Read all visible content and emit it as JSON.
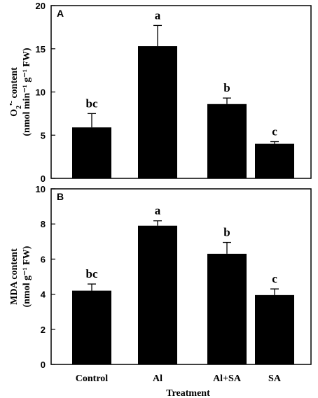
{
  "chart_data": [
    {
      "panel": "A",
      "type": "bar",
      "categories": [
        "Control",
        "Al",
        "Al+SA",
        "SA"
      ],
      "values": [
        5.9,
        15.3,
        8.6,
        4.0
      ],
      "errors": [
        1.6,
        2.4,
        0.7,
        0.25
      ],
      "significance": [
        "bc",
        "a",
        "b",
        "c"
      ],
      "ylim": [
        0,
        20
      ],
      "yticks": [
        0,
        5,
        10,
        15,
        20
      ],
      "ylabel_line1": "O",
      "ylabel_sub": "2",
      "ylabel_sup": "•-",
      "ylabel_rest": " content",
      "ylabel_line2": "(nmol min⁻¹ g⁻¹ FW)",
      "bar_color": "#000000"
    },
    {
      "panel": "B",
      "type": "bar",
      "categories": [
        "Control",
        "Al",
        "Al+SA",
        "SA"
      ],
      "values": [
        4.2,
        7.9,
        6.3,
        3.95
      ],
      "errors": [
        0.38,
        0.28,
        0.65,
        0.35
      ],
      "significance": [
        "bc",
        "a",
        "b",
        "c"
      ],
      "ylim": [
        0,
        10
      ],
      "yticks": [
        0,
        2,
        4,
        6,
        8,
        10
      ],
      "ylabel_line1": "MDA content",
      "ylabel_line2": "(nmol g⁻¹ FW)",
      "xlabel": "Treatment",
      "bar_color": "#000000"
    }
  ]
}
